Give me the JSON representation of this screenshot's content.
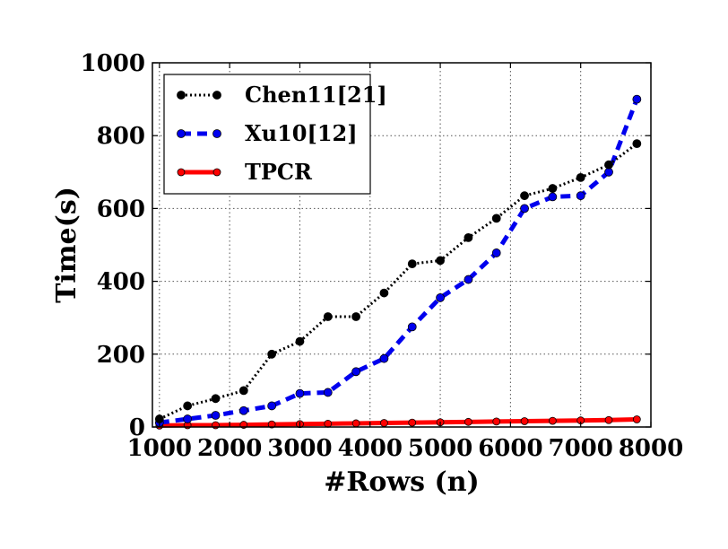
{
  "chart_data": {
    "type": "line",
    "title": "",
    "xlabel": "#Rows (n)",
    "ylabel": "Time(s)",
    "xlim": [
      900,
      8000
    ],
    "ylim": [
      0,
      1000
    ],
    "xticks": [
      1000,
      2000,
      3000,
      4000,
      5000,
      6000,
      7000,
      8000
    ],
    "yticks": [
      0,
      200,
      400,
      600,
      800,
      1000
    ],
    "grid": true,
    "legend_position": "top-left",
    "x": [
      1000,
      1400,
      1800,
      2200,
      2600,
      3000,
      3400,
      3800,
      4200,
      4600,
      5000,
      5400,
      5800,
      6200,
      6600,
      7000,
      7400,
      7800
    ],
    "series": [
      {
        "name": "Chen11[21]",
        "color": "#000000",
        "style": "dotted",
        "values": [
          22,
          58,
          78,
          100,
          200,
          235,
          303,
          303,
          368,
          448,
          457,
          520,
          573,
          635,
          655,
          685,
          720,
          778
        ]
      },
      {
        "name": "Xu10[12]",
        "color": "#0000ee",
        "style": "dashed",
        "values": [
          12,
          22,
          32,
          45,
          58,
          92,
          95,
          152,
          188,
          275,
          355,
          405,
          478,
          600,
          632,
          635,
          700,
          900
        ]
      },
      {
        "name": "TPCR",
        "color": "#ff0000",
        "style": "solid",
        "values": [
          4,
          5,
          5,
          6,
          7,
          8,
          9,
          10,
          11,
          12,
          13,
          14,
          15,
          16,
          17,
          18,
          19,
          21
        ]
      }
    ]
  }
}
